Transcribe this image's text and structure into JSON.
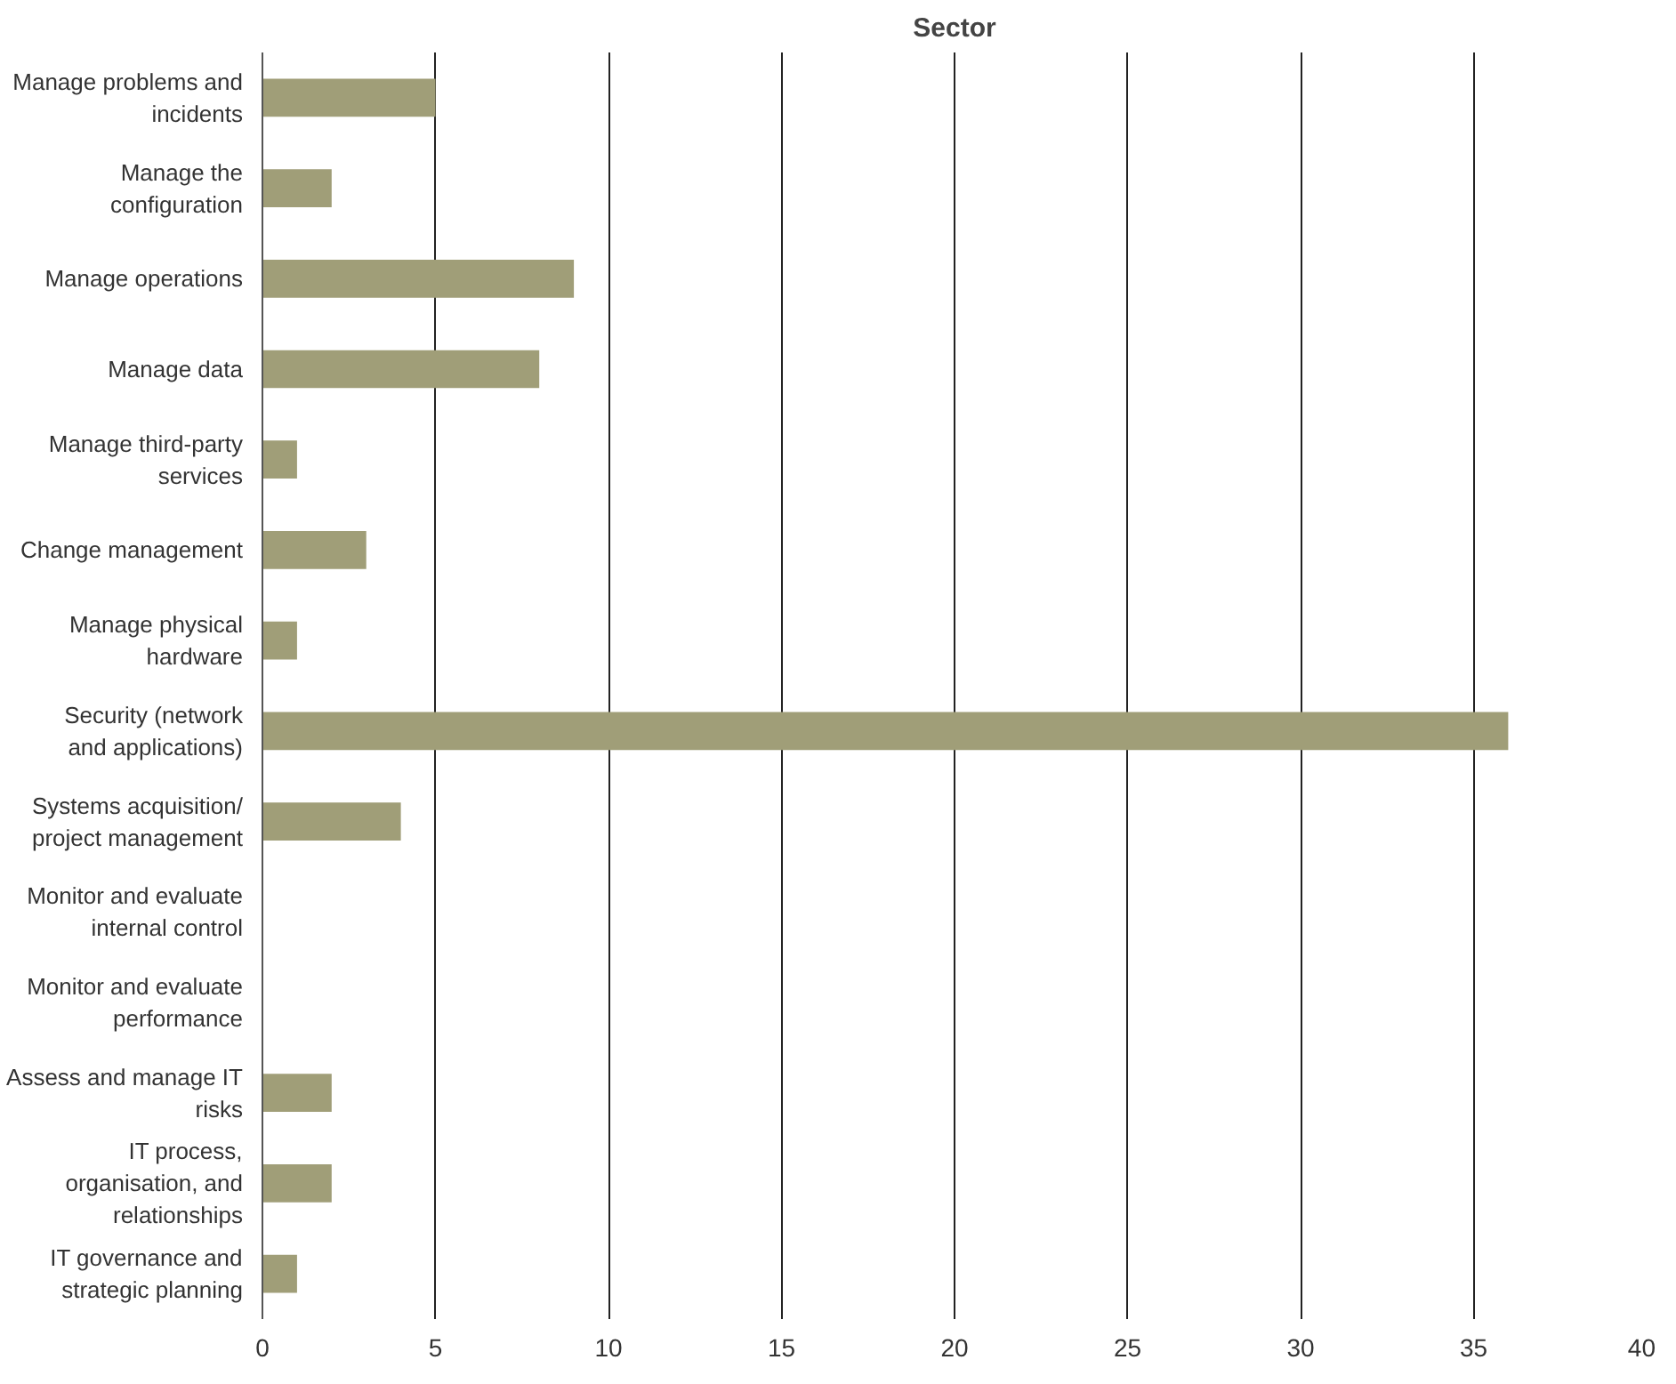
{
  "chart_data": {
    "type": "bar",
    "orientation": "horizontal",
    "title": "Sector",
    "categories": [
      "Manage problems and incidents",
      "Manage the configuration",
      "Manage operations",
      "Manage data",
      "Manage third-party services",
      "Change management",
      "Manage physical hardware",
      "Security (network and applications)",
      "Systems acquisition/ project management",
      "Monitor and evaluate internal control",
      "Monitor and evaluate performance",
      "Assess and manage IT risks",
      "IT process, organisation, and relationships",
      "IT governance and strategic planning"
    ],
    "values": [
      5,
      2,
      9,
      8,
      1,
      3,
      1,
      36,
      4,
      0,
      0,
      2,
      2,
      1
    ],
    "color": "#a09e78",
    "xlim": [
      0,
      40
    ],
    "xticks": [
      0,
      5,
      10,
      15,
      20,
      25,
      30,
      35,
      40
    ],
    "grid": "x"
  }
}
